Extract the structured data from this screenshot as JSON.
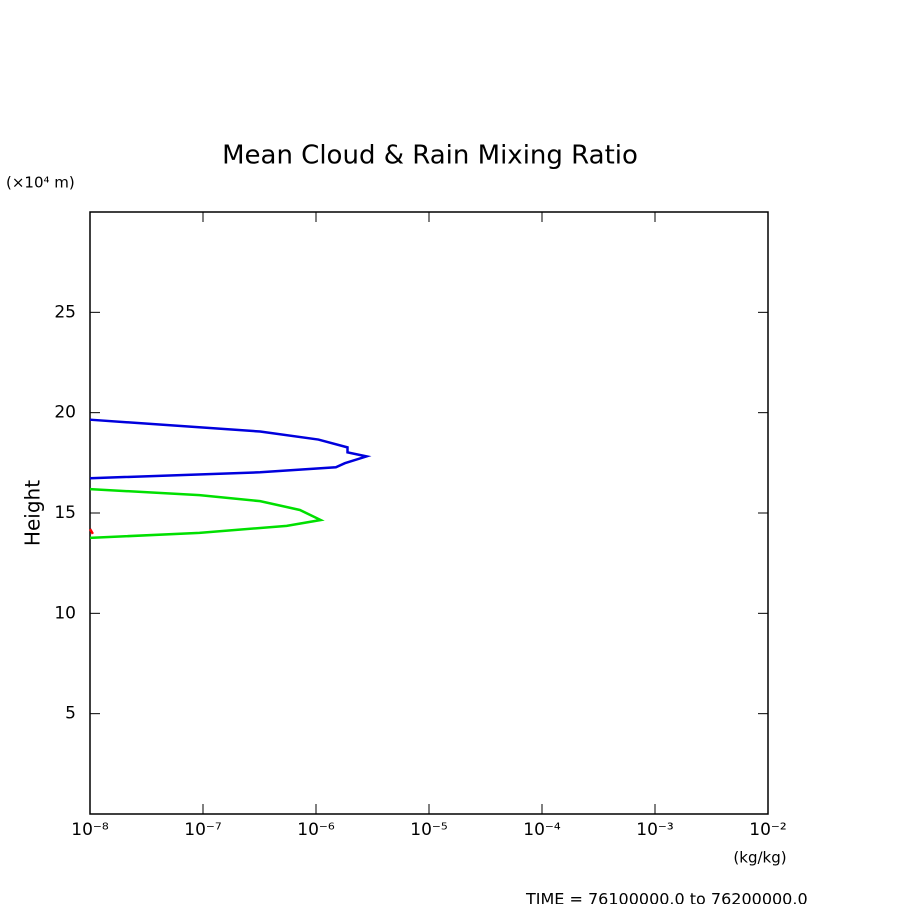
{
  "chart_data": {
    "type": "line",
    "title": "Mean Cloud & Rain Mixing Ratio",
    "y_label": "Height",
    "y_unit": "(×10⁴ m)",
    "x_unit": "(kg/kg)",
    "footer": "TIME = 76100000.0 to 76200000.0",
    "x_log": true,
    "xlim": [
      1e-08,
      0.01
    ],
    "xticks": [
      {
        "value": 1e-08,
        "label": "10⁻⁸"
      },
      {
        "value": 1e-07,
        "label": "10⁻⁷"
      },
      {
        "value": 1e-06,
        "label": "10⁻⁶"
      },
      {
        "value": 1e-05,
        "label": "10⁻⁵"
      },
      {
        "value": 0.0001,
        "label": "10⁻⁴"
      },
      {
        "value": 0.001,
        "label": "10⁻³"
      },
      {
        "value": 0.01,
        "label": "10⁻²"
      }
    ],
    "ylim": [
      0,
      30
    ],
    "yticks": [
      5,
      10,
      15,
      20,
      25
    ],
    "series": [
      {
        "color": "#0000dd",
        "x": [
          1e-08,
          3.2e-07,
          1.05e-06,
          1.9e-06,
          1.9e-06,
          2.8e-06,
          1.8e-06,
          1.5e-06,
          3.2e-07,
          1e-08
        ],
        "values": [
          19.65,
          19.06,
          18.66,
          18.27,
          18.02,
          17.82,
          17.48,
          17.28,
          17.03,
          16.73
        ]
      },
      {
        "color": "#00e000",
        "x": [
          1e-08,
          9.3e-08,
          3.2e-07,
          7.2e-07,
          1.1e-06,
          5.5e-07,
          9.3e-08,
          1e-08
        ],
        "values": [
          16.19,
          15.89,
          15.59,
          15.15,
          14.65,
          14.36,
          14.01,
          13.76
        ]
      },
      {
        "color": "#ff0000",
        "x": [
          1e-08,
          1.06e-08
        ],
        "values": [
          14.2,
          13.96
        ]
      }
    ]
  }
}
